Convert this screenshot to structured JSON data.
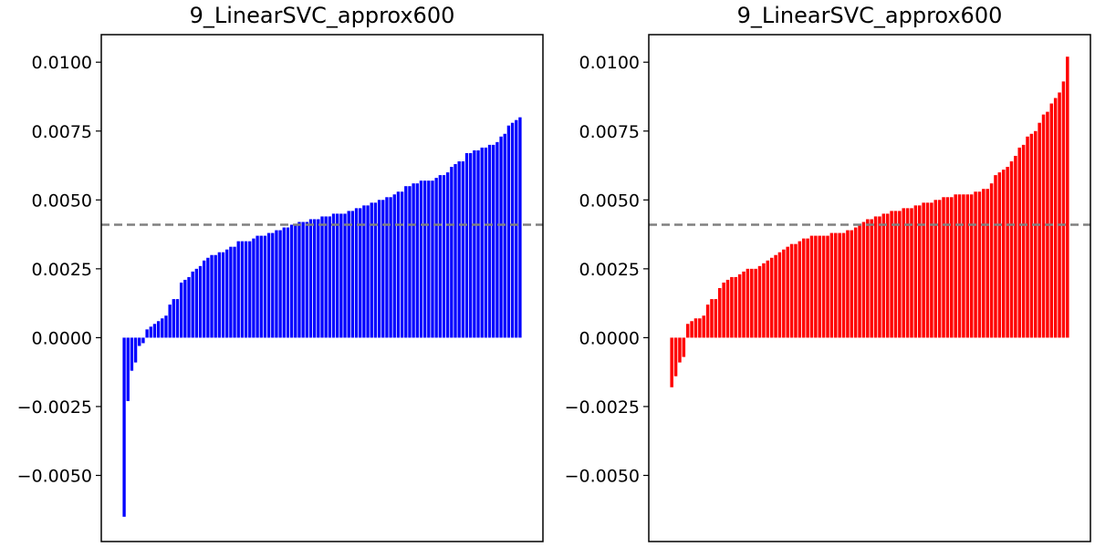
{
  "chart_data": [
    {
      "type": "bar",
      "title": "9_LinearSVC_approx600",
      "xlabel": "",
      "ylabel": "",
      "ylim": [
        -0.0074,
        0.011
      ],
      "yticks": [
        -0.005,
        -0.0025,
        0.0,
        0.0025,
        0.005,
        0.0075,
        0.01
      ],
      "ytick_labels": [
        "−0.0050",
        "−0.0025",
        "0.0000",
        "0.0025",
        "0.0050",
        "0.0075",
        "0.0100"
      ],
      "show_xticks": false,
      "grid": false,
      "bar_color": "#0000ff",
      "reference_line": {
        "value": 0.0041,
        "color": "#808080",
        "style": "dashed"
      },
      "values": [
        -0.0065,
        -0.0023,
        -0.0012,
        -0.0009,
        -0.0003,
        -0.0002,
        0.0003,
        0.0004,
        0.0005,
        0.0006,
        0.0007,
        0.0008,
        0.0012,
        0.0014,
        0.0014,
        0.002,
        0.0021,
        0.0022,
        0.0024,
        0.0025,
        0.0026,
        0.0028,
        0.0029,
        0.003,
        0.003,
        0.0031,
        0.0031,
        0.0032,
        0.0033,
        0.0033,
        0.0035,
        0.0035,
        0.0035,
        0.0035,
        0.0036,
        0.0037,
        0.0037,
        0.0037,
        0.0038,
        0.0038,
        0.0039,
        0.0039,
        0.004,
        0.004,
        0.0041,
        0.0041,
        0.0042,
        0.0042,
        0.0042,
        0.0043,
        0.0043,
        0.0043,
        0.0044,
        0.0044,
        0.0044,
        0.0045,
        0.0045,
        0.0045,
        0.0045,
        0.0046,
        0.0046,
        0.0047,
        0.0047,
        0.0048,
        0.0048,
        0.0049,
        0.0049,
        0.005,
        0.005,
        0.0051,
        0.0051,
        0.0052,
        0.0053,
        0.0053,
        0.0055,
        0.0055,
        0.0056,
        0.0056,
        0.0057,
        0.0057,
        0.0057,
        0.0057,
        0.0058,
        0.0059,
        0.0059,
        0.006,
        0.0062,
        0.0063,
        0.0064,
        0.0064,
        0.0067,
        0.0067,
        0.0068,
        0.0068,
        0.0069,
        0.0069,
        0.007,
        0.007,
        0.0071,
        0.0073,
        0.0074,
        0.0077,
        0.0078,
        0.0079,
        0.008
      ]
    },
    {
      "type": "bar",
      "title": "9_LinearSVC_approx600",
      "xlabel": "",
      "ylabel": "",
      "ylim": [
        -0.0074,
        0.011
      ],
      "yticks": [
        -0.005,
        -0.0025,
        0.0,
        0.0025,
        0.005,
        0.0075,
        0.01
      ],
      "ytick_labels": [
        "−0.0050",
        "−0.0025",
        "0.0000",
        "0.0025",
        "0.0050",
        "0.0075",
        "0.0100"
      ],
      "show_xticks": false,
      "grid": false,
      "bar_color": "#ff0000",
      "reference_line": {
        "value": 0.0041,
        "color": "#808080",
        "style": "dashed"
      },
      "values": [
        -0.0018,
        -0.0014,
        -0.0009,
        -0.0007,
        0.0005,
        0.0006,
        0.0007,
        0.0007,
        0.0008,
        0.0012,
        0.0014,
        0.0014,
        0.0018,
        0.002,
        0.0021,
        0.0022,
        0.0022,
        0.0023,
        0.0024,
        0.0025,
        0.0025,
        0.0025,
        0.0026,
        0.0027,
        0.0028,
        0.0029,
        0.003,
        0.0031,
        0.0032,
        0.0033,
        0.0034,
        0.0034,
        0.0035,
        0.0036,
        0.0036,
        0.0037,
        0.0037,
        0.0037,
        0.0037,
        0.0037,
        0.0038,
        0.0038,
        0.0038,
        0.0038,
        0.0039,
        0.0039,
        0.004,
        0.0041,
        0.0042,
        0.0043,
        0.0043,
        0.0044,
        0.0044,
        0.0045,
        0.0045,
        0.0046,
        0.0046,
        0.0046,
        0.0047,
        0.0047,
        0.0047,
        0.0048,
        0.0048,
        0.0049,
        0.0049,
        0.0049,
        0.005,
        0.005,
        0.0051,
        0.0051,
        0.0051,
        0.0052,
        0.0052,
        0.0052,
        0.0052,
        0.0052,
        0.0053,
        0.0053,
        0.0054,
        0.0054,
        0.0056,
        0.0059,
        0.006,
        0.0061,
        0.0062,
        0.0064,
        0.0066,
        0.0069,
        0.007,
        0.0073,
        0.0074,
        0.0075,
        0.0078,
        0.0081,
        0.0082,
        0.0085,
        0.0087,
        0.0089,
        0.0093,
        0.0102
      ]
    }
  ]
}
